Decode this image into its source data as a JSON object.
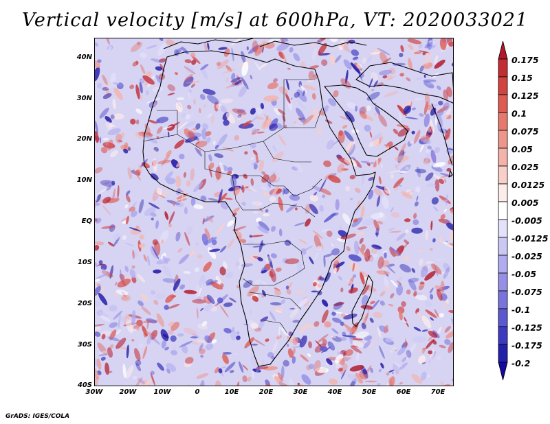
{
  "title": "Vertical velocity [m/s] at 600hPa, VT: 2020033021",
  "credit": "GrADS: IGES/COLA",
  "map": {
    "region": "Africa",
    "field": "vertical velocity",
    "lat_ticks": [
      "40N",
      "30N",
      "20N",
      "10N",
      "EQ",
      "10S",
      "20S",
      "30S",
      "40S"
    ],
    "lon_ticks": [
      "30W",
      "20W",
      "10W",
      "0",
      "10E",
      "20E",
      "30E",
      "40E",
      "50E",
      "60E",
      "70E"
    ]
  },
  "colorbar": {
    "labels": [
      "0.175",
      "0.15",
      "0.125",
      "0.1",
      "0.075",
      "0.05",
      "0.025",
      "0.0125",
      "0.005",
      "-0.005",
      "-0.0125",
      "-0.025",
      "-0.05",
      "-0.075",
      "-0.1",
      "-0.125",
      "-0.175",
      "-0.2"
    ],
    "colors": [
      "#b2182b",
      "#c42c33",
      "#d2423f",
      "#dd5b53",
      "#e6786e",
      "#ee968c",
      "#f4b3aa",
      "#f9d0c9",
      "#fdecea",
      "#ffffff",
      "#e4e2fb",
      "#cbc8f5",
      "#b0acef",
      "#9590e6",
      "#7974dc",
      "#5c58cf",
      "#3d3ac0",
      "#221fa8",
      "#1509a0"
    ]
  }
}
